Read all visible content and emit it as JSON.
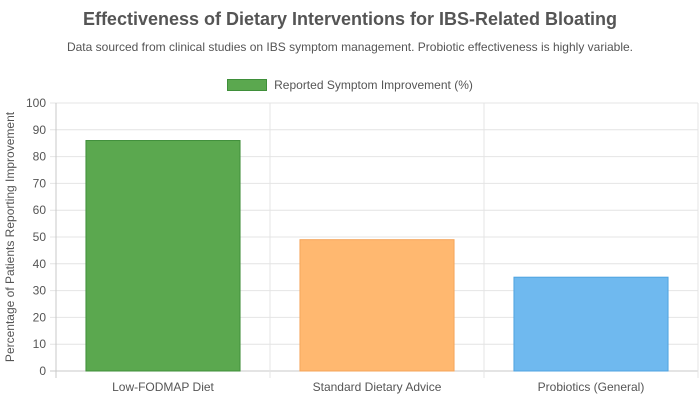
{
  "chart_data": {
    "type": "bar",
    "title": "Effectiveness of Dietary Interventions for IBS-Related Bloating",
    "subtitle": "Data sourced from clinical studies on IBS symptom management. Probiotic effectiveness is highly variable.",
    "categories": [
      "Low-FODMAP Diet",
      "Standard Dietary Advice",
      "Probiotics (General)"
    ],
    "series": [
      {
        "name": "Reported Symptom Improvement (%)",
        "values": [
          86,
          49,
          35
        ],
        "colors": [
          "#5ba84f",
          "#ffb870",
          "#6fb9ef"
        ],
        "border_colors": [
          "#3f8f3a",
          "#f5a55a",
          "#4fa3e0"
        ]
      }
    ],
    "ylabel": "Percentage of Patients Reporting Improvement",
    "xlabel": "",
    "ylim": [
      0,
      100
    ],
    "yticks": [
      0,
      10,
      20,
      30,
      40,
      50,
      60,
      70,
      80,
      90,
      100
    ],
    "grid": true,
    "legend_position": "top-center",
    "legend_color": "#5ba84f"
  }
}
